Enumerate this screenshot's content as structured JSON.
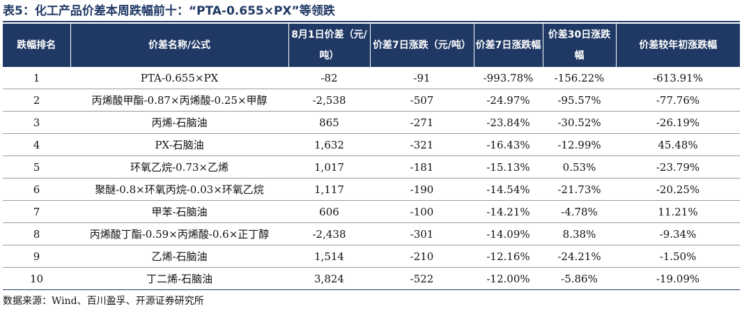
{
  "title": "表5：化工产品价差本周跌幅前十：“PTA-0.655×PX”等领跌",
  "table": {
    "headers": [
      "跌幅排名",
      "价差名称/公式",
      "8月1日价差（元/吨）",
      "价差7日涨跌（元/吨）",
      "价差7日涨跌幅",
      "价差30日涨跌幅",
      "价差较年初涨跌幅"
    ],
    "rows": [
      {
        "rank": "1",
        "name": "PTA-0.655×PX",
        "spread": "-82",
        "chg7": "-91",
        "pct7": "-993.78%",
        "pct30": "-156.22%",
        "ytd": "-613.91%"
      },
      {
        "rank": "2",
        "name": "丙烯酸甲酯-0.87×丙烯酸-0.25×甲醇",
        "spread": "-2,538",
        "chg7": "-507",
        "pct7": "-24.97%",
        "pct30": "-95.57%",
        "ytd": "-77.76%"
      },
      {
        "rank": "3",
        "name": "丙烯-石脑油",
        "spread": "865",
        "chg7": "-271",
        "pct7": "-23.84%",
        "pct30": "-30.52%",
        "ytd": "-26.19%"
      },
      {
        "rank": "4",
        "name": "PX-石脑油",
        "spread": "1,632",
        "chg7": "-321",
        "pct7": "-16.43%",
        "pct30": "-12.99%",
        "ytd": "45.48%"
      },
      {
        "rank": "5",
        "name": "环氧乙烷-0.73×乙烯",
        "spread": "1,017",
        "chg7": "-181",
        "pct7": "-15.13%",
        "pct30": "0.53%",
        "ytd": "-23.79%"
      },
      {
        "rank": "6",
        "name": "聚醚-0.8×环氧丙烷-0.03×环氧乙烷",
        "spread": "1,117",
        "chg7": "-190",
        "pct7": "-14.54%",
        "pct30": "-21.73%",
        "ytd": "-20.25%"
      },
      {
        "rank": "7",
        "name": "甲苯-石脑油",
        "spread": "606",
        "chg7": "-100",
        "pct7": "-14.21%",
        "pct30": "-4.78%",
        "ytd": "11.21%"
      },
      {
        "rank": "8",
        "name": "丙烯酸丁酯-0.59×丙烯酸-0.6×正丁醇",
        "spread": "-2,438",
        "chg7": "-301",
        "pct7": "-14.09%",
        "pct30": "8.38%",
        "ytd": "-9.34%"
      },
      {
        "rank": "9",
        "name": "乙烯-石脑油",
        "spread": "1,514",
        "chg7": "-210",
        "pct7": "-12.16%",
        "pct30": "-24.21%",
        "ytd": "-1.50%"
      },
      {
        "rank": "10",
        "name": "丁二烯-石脑油",
        "spread": "3,824",
        "chg7": "-522",
        "pct7": "-12.00%",
        "pct30": "-5.86%",
        "ytd": "-19.09%"
      }
    ]
  },
  "source": "数据来源：Wind、百川盈孚、开源证券研究所",
  "colors": {
    "header_bg": "#1f3864",
    "header_text": "#ffffff",
    "title": "#1f3864"
  }
}
